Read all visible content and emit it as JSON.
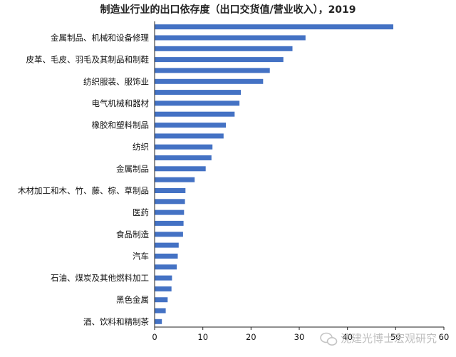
{
  "chart_data": {
    "type": "bar",
    "orientation": "horizontal",
    "title": "制造业行业的出口依存度（出口交货值/营业收入），2019",
    "xlabel": "",
    "ylabel": "",
    "xlim": [
      0,
      60
    ],
    "xticks": [
      "0",
      "10",
      "20",
      "30",
      "40",
      "50",
      "60"
    ],
    "grid": false,
    "legend": "none",
    "bar_color": "#4472c4",
    "categories": [
      "",
      "金属制品、机械和设备修理",
      "",
      "皮革、毛皮、羽毛及其制品和制鞋",
      "",
      "纺织服装、服饰业",
      "",
      "电气机械和器材",
      "",
      "橡胶和塑料制品",
      "",
      "纺织",
      "",
      "金属制品",
      "",
      "木材加工和木、竹、藤、棕、草制品",
      "",
      "医药",
      "",
      "食品制造",
      "",
      "汽车",
      "",
      "石油、煤炭及其他燃料加工",
      "",
      "黑色金属",
      "",
      "酒、饮料和精制茶"
    ],
    "values": [
      49.5,
      31.3,
      28.6,
      26.7,
      23.9,
      22.5,
      17.9,
      17.6,
      16.6,
      14.8,
      14.3,
      12.0,
      11.8,
      10.6,
      8.3,
      6.4,
      6.3,
      6.1,
      6.0,
      5.9,
      5.0,
      4.8,
      4.6,
      3.6,
      3.5,
      2.7,
      2.3,
      1.5
    ]
  },
  "watermark": "沈建光博士宏观研究"
}
